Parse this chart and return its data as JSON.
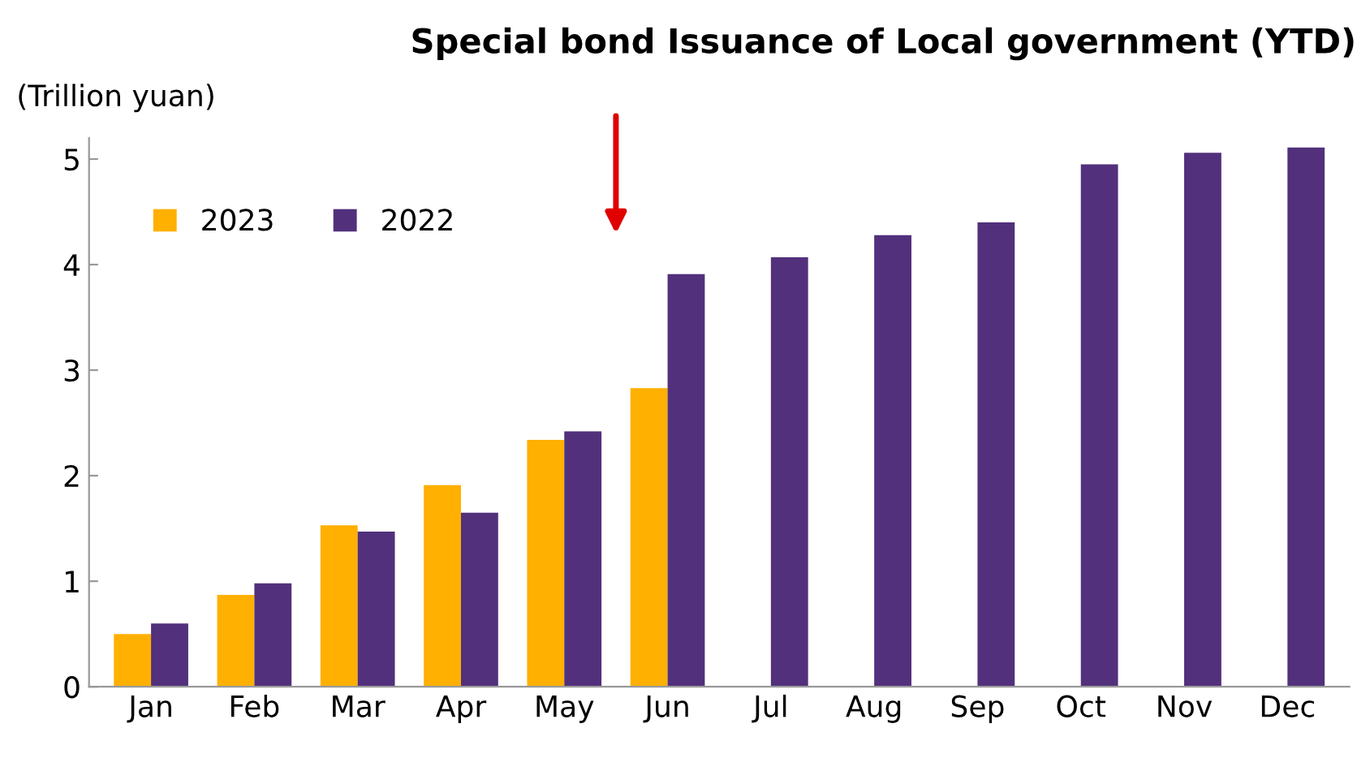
{
  "chart_data": {
    "type": "bar",
    "title": "Special bond Issuance of Local government (YTD)",
    "ylabel": "(Trillion yuan)",
    "categories": [
      "Jan",
      "Feb",
      "Mar",
      "Apr",
      "May",
      "Jun",
      "Jul",
      "Aug",
      "Sep",
      "Oct",
      "Nov",
      "Dec"
    ],
    "series": [
      {
        "name": "2023",
        "color": "#ffb000",
        "values": [
          0.5,
          0.87,
          1.53,
          1.91,
          2.34,
          2.83,
          null,
          null,
          null,
          null,
          null,
          null
        ]
      },
      {
        "name": "2022",
        "color": "#52307c",
        "values": [
          0.6,
          0.98,
          1.47,
          1.65,
          2.42,
          3.91,
          4.07,
          4.28,
          4.4,
          4.95,
          5.06,
          5.11
        ]
      }
    ],
    "ylim": [
      0,
      5.2
    ],
    "yticks": [
      0,
      1,
      2,
      3,
      4,
      5
    ],
    "grid": false,
    "legend": "top left"
  }
}
